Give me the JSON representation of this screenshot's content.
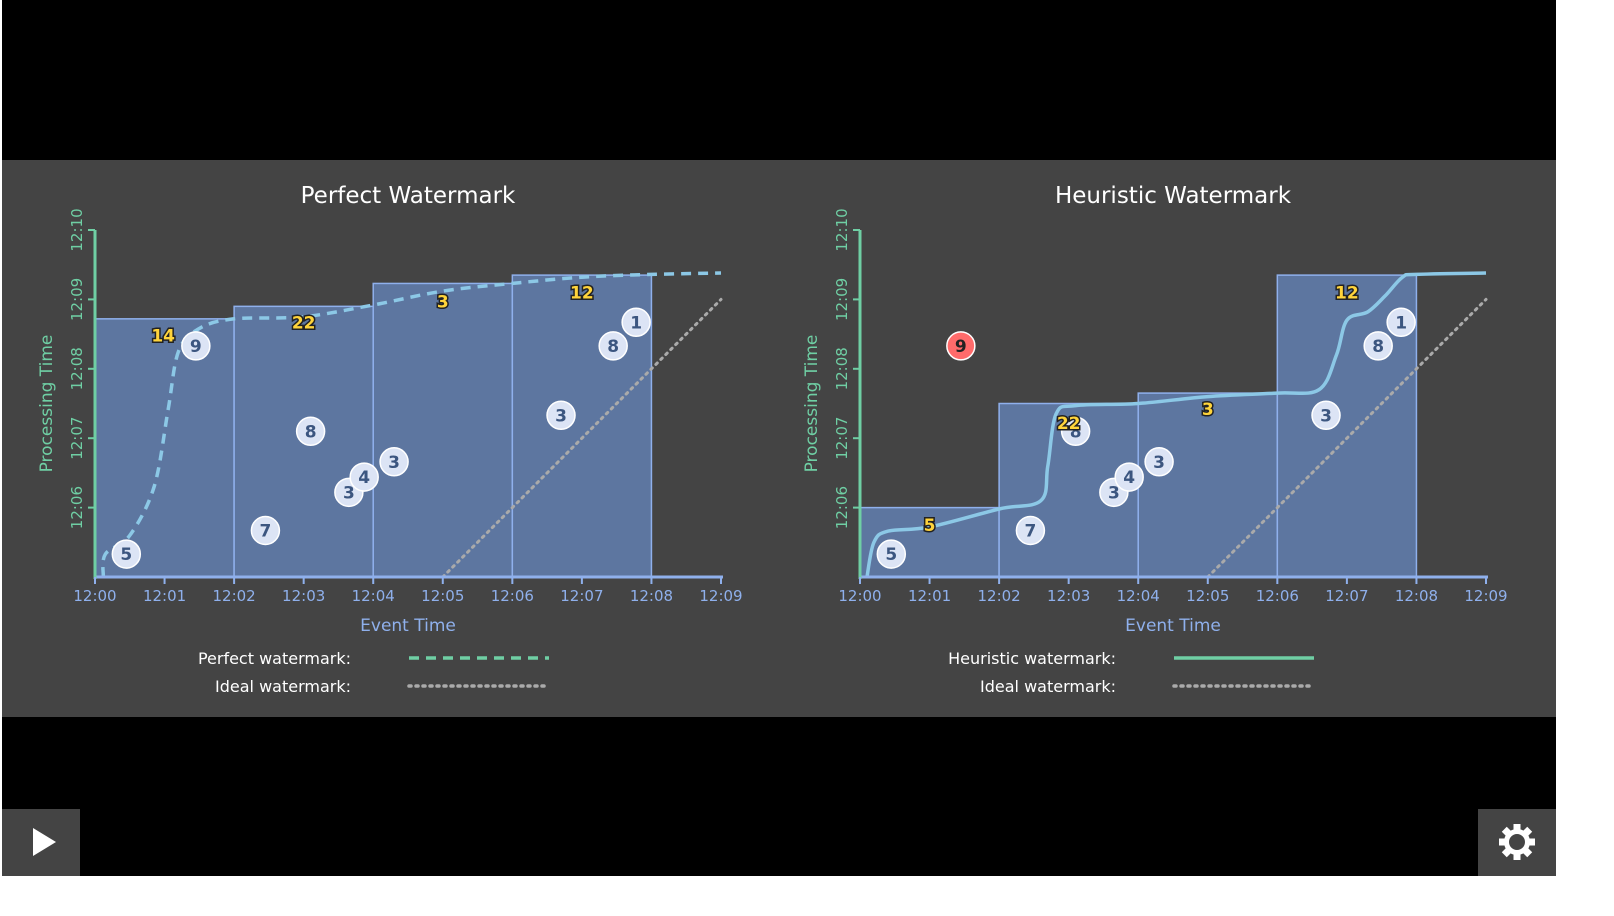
{
  "colors": {
    "background": "#444444",
    "letterbox": "#000000",
    "pane_fill": "#5d76a0",
    "pane_stroke": "#8fb0ec",
    "event_axis": "#8fb0ec",
    "processing_axis": "#6fcfa4",
    "watermark_line": "#8cc8e6",
    "legend_line": "#6fcfa4",
    "ideal_line": "#aaaaaa",
    "bubble_fill": "#dce4f5",
    "bubble_text": "#3c5680",
    "late_fill": "#ff6b6b",
    "sum_text": "#ffd43b"
  },
  "icons": {
    "play": "play-icon",
    "settings": "gear-icon"
  },
  "chart_data": [
    {
      "type": "scatter",
      "title": "Perfect Watermark",
      "xlabel": "Event Time",
      "ylabel": "Processing Time",
      "x_ticks": [
        "12:00",
        "12:01",
        "12:02",
        "12:03",
        "12:04",
        "12:05",
        "12:06",
        "12:07",
        "12:08",
        "12:09"
      ],
      "y_ticks": [
        "12:06",
        "12:07",
        "12:08",
        "12:09",
        "12:10"
      ],
      "xlim": [
        0,
        9
      ],
      "ylim": [
        5,
        10
      ],
      "points": [
        {
          "label": "5",
          "x": 0.45,
          "y": 5.33
        },
        {
          "label": "9",
          "x": 1.45,
          "y": 8.33
        },
        {
          "label": "7",
          "x": 2.45,
          "y": 5.67
        },
        {
          "label": "8",
          "x": 3.1,
          "y": 7.1
        },
        {
          "label": "3",
          "x": 3.65,
          "y": 6.22
        },
        {
          "label": "4",
          "x": 3.87,
          "y": 6.44
        },
        {
          "label": "3",
          "x": 4.3,
          "y": 6.66
        },
        {
          "label": "3",
          "x": 6.7,
          "y": 7.33
        },
        {
          "label": "8",
          "x": 7.45,
          "y": 8.33
        },
        {
          "label": "1",
          "x": 7.78,
          "y": 8.67
        }
      ],
      "windows": [
        {
          "x0": 0,
          "x1": 2,
          "top": 8.72,
          "sum": "14",
          "sum_x": 0.98,
          "sum_y": 8.48
        },
        {
          "x0": 2,
          "x1": 4,
          "top": 8.9,
          "sum": "22",
          "sum_x": 3.0,
          "sum_y": 8.67
        },
        {
          "x0": 4,
          "x1": 6,
          "top": 9.23,
          "sum": "3",
          "sum_x": 5.0,
          "sum_y": 8.97
        },
        {
          "x0": 6,
          "x1": 8,
          "top": 9.35,
          "sum": "12",
          "sum_x": 7.0,
          "sum_y": 9.1
        }
      ],
      "watermark_style": "dashed",
      "watermark": [
        [
          0.12,
          5.0
        ],
        [
          0.15,
          5.33
        ],
        [
          0.5,
          5.6
        ],
        [
          0.85,
          6.3
        ],
        [
          1.05,
          7.4
        ],
        [
          1.2,
          8.25
        ],
        [
          1.5,
          8.58
        ],
        [
          2,
          8.72
        ],
        [
          3,
          8.75
        ],
        [
          4,
          8.92
        ],
        [
          5,
          9.12
        ],
        [
          6,
          9.23
        ],
        [
          7,
          9.32
        ],
        [
          8,
          9.36
        ],
        [
          9,
          9.38
        ]
      ],
      "ideal": [
        [
          5,
          5
        ],
        [
          9,
          9
        ]
      ],
      "legend": [
        {
          "label": "Perfect watermark:",
          "style": "dashed"
        },
        {
          "label": "Ideal watermark:",
          "style": "dotted"
        }
      ]
    },
    {
      "type": "scatter",
      "title": "Heuristic Watermark",
      "xlabel": "Event Time",
      "ylabel": "Processing Time",
      "x_ticks": [
        "12:00",
        "12:01",
        "12:02",
        "12:03",
        "12:04",
        "12:05",
        "12:06",
        "12:07",
        "12:08",
        "12:09"
      ],
      "y_ticks": [
        "12:06",
        "12:07",
        "12:08",
        "12:09",
        "12:10"
      ],
      "xlim": [
        0,
        9
      ],
      "ylim": [
        5,
        10
      ],
      "points": [
        {
          "label": "5",
          "x": 0.45,
          "y": 5.33
        },
        {
          "label": "9",
          "x": 1.45,
          "y": 8.33,
          "late": true
        },
        {
          "label": "7",
          "x": 2.45,
          "y": 5.67
        },
        {
          "label": "8",
          "x": 3.1,
          "y": 7.1
        },
        {
          "label": "3",
          "x": 3.65,
          "y": 6.22
        },
        {
          "label": "4",
          "x": 3.87,
          "y": 6.44
        },
        {
          "label": "3",
          "x": 4.3,
          "y": 6.66
        },
        {
          "label": "3",
          "x": 6.7,
          "y": 7.33
        },
        {
          "label": "8",
          "x": 7.45,
          "y": 8.33
        },
        {
          "label": "1",
          "x": 7.78,
          "y": 8.67
        }
      ],
      "windows": [
        {
          "x0": 0,
          "x1": 2,
          "top": 6.0,
          "sum": "5",
          "sum_x": 1.0,
          "sum_y": 5.75
        },
        {
          "x0": 2,
          "x1": 4,
          "top": 7.5,
          "sum": "22",
          "sum_x": 3.0,
          "sum_y": 7.22
        },
        {
          "x0": 4,
          "x1": 6,
          "top": 7.65,
          "sum": "3",
          "sum_x": 5.0,
          "sum_y": 7.42
        },
        {
          "x0": 6,
          "x1": 8,
          "top": 9.35,
          "sum": "12",
          "sum_x": 7.0,
          "sum_y": 9.1
        }
      ],
      "watermark_style": "solid",
      "watermark": [
        [
          0.1,
          5.0
        ],
        [
          0.2,
          5.5
        ],
        [
          0.4,
          5.66
        ],
        [
          1,
          5.72
        ],
        [
          2,
          5.98
        ],
        [
          2.6,
          6.1
        ],
        [
          2.7,
          6.6
        ],
        [
          2.82,
          7.35
        ],
        [
          3.1,
          7.47
        ],
        [
          4,
          7.5
        ],
        [
          5,
          7.6
        ],
        [
          6,
          7.65
        ],
        [
          6.6,
          7.7
        ],
        [
          6.85,
          8.2
        ],
        [
          7.0,
          8.7
        ],
        [
          7.3,
          8.82
        ],
        [
          7.55,
          9.05
        ],
        [
          7.8,
          9.32
        ],
        [
          8,
          9.36
        ],
        [
          9,
          9.38
        ]
      ],
      "ideal": [
        [
          5,
          5
        ],
        [
          9,
          9
        ]
      ],
      "legend": [
        {
          "label": "Heuristic watermark:",
          "style": "solid"
        },
        {
          "label": "Ideal watermark:",
          "style": "dotted"
        }
      ]
    }
  ]
}
